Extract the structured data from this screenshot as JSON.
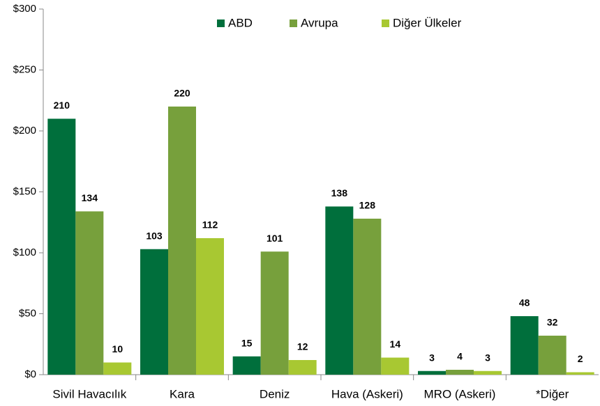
{
  "chart_data": {
    "type": "bar",
    "categories": [
      "Sivil Havacılık",
      "Kara",
      "Deniz",
      "Hava (Askeri)",
      "MRO (Askeri)",
      "*Diğer"
    ],
    "series": [
      {
        "name": "ABD",
        "color": "#006f3c",
        "values": [
          210,
          103,
          15,
          138,
          3,
          48
        ]
      },
      {
        "name": "Avrupa",
        "color": "#77a03c",
        "values": [
          134,
          220,
          101,
          128,
          4,
          32
        ]
      },
      {
        "name": "Diğer Ülkeler",
        "color": "#a8c832",
        "values": [
          10,
          112,
          12,
          14,
          3,
          2
        ]
      }
    ],
    "ylim": [
      0,
      300
    ],
    "yticks": [
      {
        "value": 0,
        "label": "$0"
      },
      {
        "value": 50,
        "label": "$50"
      },
      {
        "value": 100,
        "label": "$100"
      },
      {
        "value": 150,
        "label": "$150"
      },
      {
        "value": 200,
        "label": "$200"
      },
      {
        "value": 250,
        "label": "$250"
      },
      {
        "value": 300,
        "label": "$300"
      }
    ],
    "legend": "top"
  }
}
